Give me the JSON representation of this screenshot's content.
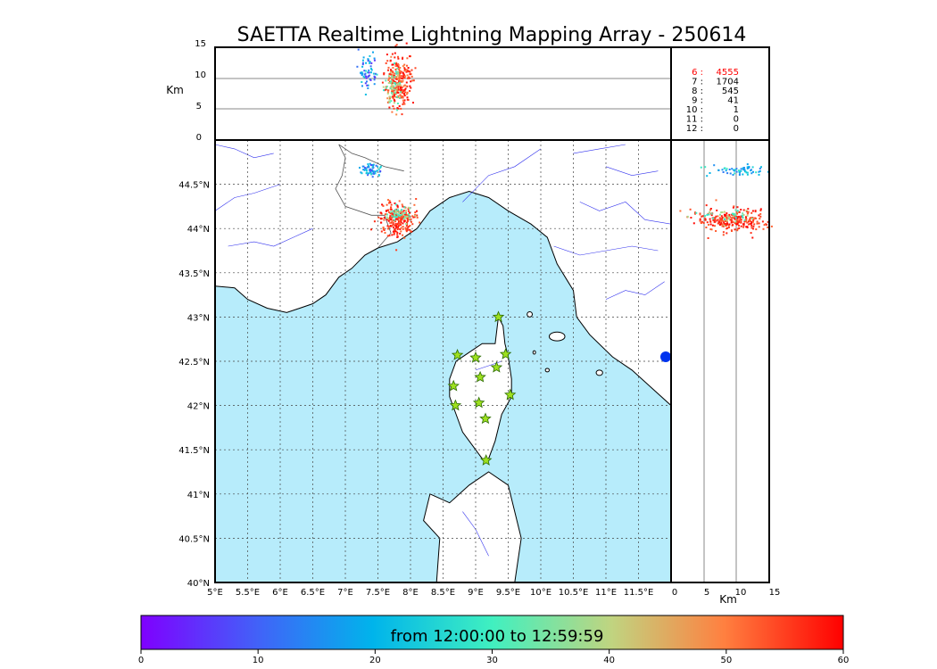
{
  "title": "SAETTA Realtime Lightning Mapping Array - 250614",
  "colors": {
    "sea": "#b7ecfb",
    "land": "#ffffff",
    "coast": "#000000",
    "border": "#555555",
    "river": "#3333ee",
    "station_fill": "#9ee01f",
    "station_stroke": "#2a6a00",
    "highlight_count": "#ff0000"
  },
  "altitude_panel": {
    "ylabel": "Km",
    "yticks": [
      "15",
      "10",
      "5",
      "0"
    ]
  },
  "side_panel": {
    "xlabel": "Km",
    "xticks": [
      "0",
      "5",
      "10",
      "15"
    ]
  },
  "map": {
    "lon_ticks": [
      "5°E",
      "5.5°E",
      "6°E",
      "6.5°E",
      "7°E",
      "7.5°E",
      "8°E",
      "8.5°E",
      "9°E",
      "9.5°E",
      "10°E",
      "10.5°E",
      "11°E",
      "11.5°E"
    ],
    "lat_ticks": [
      "44.5°N",
      "44°N",
      "43.5°N",
      "43°N",
      "42.5°N",
      "42°N",
      "41.5°N",
      "41°N",
      "40.5°N",
      "40°N"
    ],
    "stations": [
      {
        "lon": 9.35,
        "lat": 43.0
      },
      {
        "lon": 8.72,
        "lat": 42.57
      },
      {
        "lon": 9.0,
        "lat": 42.54
      },
      {
        "lon": 9.46,
        "lat": 42.58
      },
      {
        "lon": 9.32,
        "lat": 42.43
      },
      {
        "lon": 9.07,
        "lat": 42.32
      },
      {
        "lon": 8.66,
        "lat": 42.22
      },
      {
        "lon": 9.53,
        "lat": 42.12
      },
      {
        "lon": 8.69,
        "lat": 42.0
      },
      {
        "lon": 9.05,
        "lat": 42.03
      },
      {
        "lon": 9.15,
        "lat": 41.85
      },
      {
        "lon": 9.16,
        "lat": 41.38
      }
    ]
  },
  "counts": [
    {
      "label": "6  :",
      "value": "4555"
    },
    {
      "label": "7  :",
      "value": "1704"
    },
    {
      "label": "8  :",
      "value": "545"
    },
    {
      "label": "9  :",
      "value": "41"
    },
    {
      "label": "10  :",
      "value": "1"
    },
    {
      "label": "11  :",
      "value": "0"
    },
    {
      "label": "12  :",
      "value": "0"
    }
  ],
  "colorbar": {
    "label": "from 12:00:00 to 12:59:59",
    "ticks": [
      "0",
      "10",
      "20",
      "30",
      "40",
      "50",
      "60"
    ]
  }
}
